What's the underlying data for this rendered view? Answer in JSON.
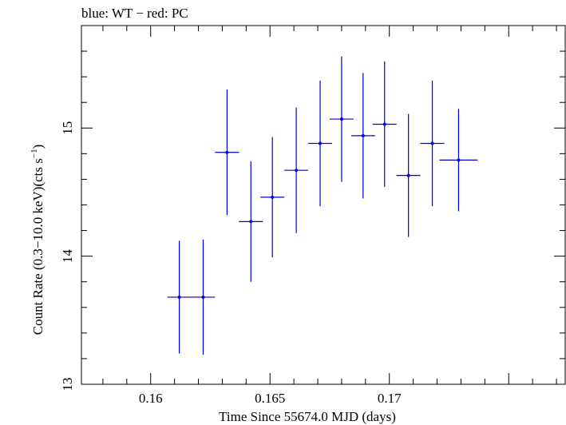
{
  "chart_data": {
    "type": "scatter",
    "title": "blue: WT − red: PC",
    "xlabel": "Time Since 55674.0 MJD (days)",
    "ylabel": {
      "main": "Count Rate (0.3−10.0 keV)(cts s",
      "sup": "−1",
      "close": ")"
    },
    "xlim": [
      0.1571,
      0.1774
    ],
    "ylim": [
      13.0,
      15.8
    ],
    "xticks": [
      {
        "value": 0.16,
        "label": "0.16"
      },
      {
        "value": 0.165,
        "label": "0.165"
      },
      {
        "value": 0.17,
        "label": "0.17"
      }
    ],
    "yticks": [
      {
        "value": 13,
        "label": "13"
      },
      {
        "value": 14,
        "label": "14"
      },
      {
        "value": 15,
        "label": "15"
      }
    ],
    "grid": false,
    "series": [
      {
        "color": "#0000dd",
        "points": [
          {
            "x": 0.1612,
            "xerr": 0.0005,
            "y": 13.68,
            "yerr": 0.44
          },
          {
            "x": 0.1622,
            "xerr": 0.0005,
            "y": 13.68,
            "yerr": 0.45
          },
          {
            "x": 0.1632,
            "xerr": 0.0005,
            "y": 14.81,
            "yerr": 0.49
          },
          {
            "x": 0.1642,
            "xerr": 0.0005,
            "y": 14.27,
            "yerr": 0.47
          },
          {
            "x": 0.1651,
            "xerr": 0.0005,
            "y": 14.46,
            "yerr": 0.47
          },
          {
            "x": 0.1661,
            "xerr": 0.0005,
            "y": 14.67,
            "yerr": 0.49
          },
          {
            "x": 0.1671,
            "xerr": 0.0005,
            "y": 14.88,
            "yerr": 0.49
          },
          {
            "x": 0.168,
            "xerr": 0.0005,
            "y": 15.07,
            "yerr": 0.49
          },
          {
            "x": 0.1689,
            "xerr": 0.0005,
            "y": 14.94,
            "yerr": 0.49
          },
          {
            "x": 0.1698,
            "xerr": 0.0005,
            "y": 15.03,
            "yerr": 0.49
          },
          {
            "x": 0.1708,
            "xerr": 0.0005,
            "y": 14.63,
            "yerr": 0.48
          },
          {
            "x": 0.1718,
            "xerr": 0.0005,
            "y": 14.88,
            "yerr": 0.49
          },
          {
            "x": 0.1729,
            "xerr": 0.0008,
            "y": 14.75,
            "yerr": 0.4
          }
        ]
      }
    ]
  }
}
